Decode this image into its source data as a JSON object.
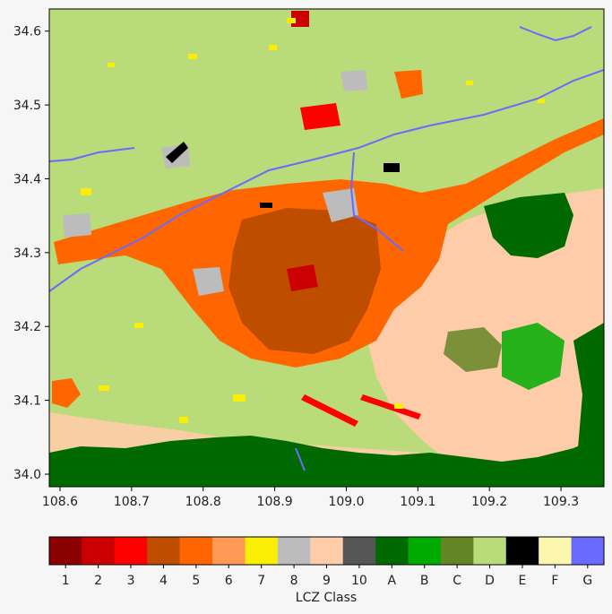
{
  "map": {
    "x_ticks": [
      108.6,
      108.7,
      108.8,
      108.9,
      109.0,
      109.1,
      109.2,
      109.3
    ],
    "x_tick_labels": [
      "108.6",
      "108.7",
      "108.8",
      "108.9",
      "109.0",
      "109.1",
      "109.2",
      "109.3"
    ],
    "y_ticks": [
      34.0,
      34.1,
      34.2,
      34.3,
      34.4,
      34.5,
      34.6
    ],
    "y_tick_labels": [
      "34.0",
      "34.1",
      "34.2",
      "34.3",
      "34.4",
      "34.5",
      "34.6"
    ],
    "lon_range": [
      108.585,
      109.36
    ],
    "lat_range": [
      33.983,
      34.63
    ],
    "background_class": "D"
  },
  "colorbar": {
    "title": "LCZ Class",
    "classes": [
      {
        "label": "1",
        "color": "#8b0000"
      },
      {
        "label": "2",
        "color": "#cc0000"
      },
      {
        "label": "3",
        "color": "#ff0000"
      },
      {
        "label": "4",
        "color": "#bf4d00"
      },
      {
        "label": "5",
        "color": "#ff6600"
      },
      {
        "label": "6",
        "color": "#ff9955"
      },
      {
        "label": "7",
        "color": "#faee05"
      },
      {
        "label": "8",
        "color": "#bcbcbc"
      },
      {
        "label": "9",
        "color": "#ffccaa"
      },
      {
        "label": "10",
        "color": "#555555"
      },
      {
        "label": "A",
        "color": "#006a00"
      },
      {
        "label": "B",
        "color": "#00aa00"
      },
      {
        "label": "C",
        "color": "#648525"
      },
      {
        "label": "D",
        "color": "#b9db79"
      },
      {
        "label": "E",
        "color": "#000000"
      },
      {
        "label": "F",
        "color": "#fbf7ae"
      },
      {
        "label": "G",
        "color": "#6a6aff"
      }
    ]
  }
}
